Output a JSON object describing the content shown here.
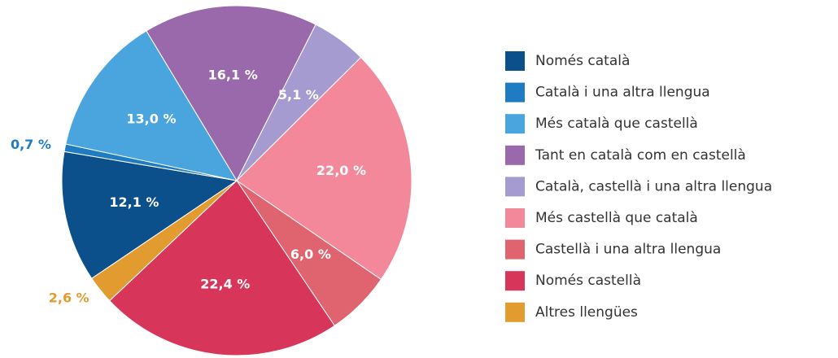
{
  "chart_data": {
    "type": "pie",
    "categories": [
      "Només català",
      "Català i una altra llengua",
      "Més català que castellà",
      "Tant en català com en castellà",
      "Català, castellà i una altra llengua",
      "Més castellà que català",
      "Castellà i una altra llengua",
      "Només castellà",
      "Altres llengües"
    ],
    "values": [
      12.1,
      0.7,
      13.0,
      16.1,
      5.1,
      22.0,
      6.0,
      22.4,
      2.6
    ],
    "value_labels": [
      "12,1 %",
      "0,7 %",
      "13,0 %",
      "16,1 %",
      "5,1 %",
      "22,0 %",
      "6,0 %",
      "22,4 %",
      "2,6 %"
    ],
    "colors": [
      "#0b4f8b",
      "#1f7cc3",
      "#4aa4dd",
      "#9a69ab",
      "#a59bd0",
      "#f4889b",
      "#e0646f",
      "#d8355b",
      "#e19b2f"
    ],
    "legend": "right"
  }
}
